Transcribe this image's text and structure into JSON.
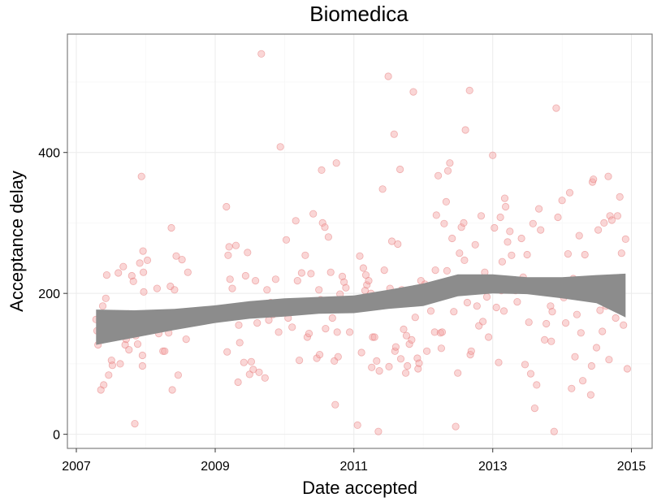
{
  "chart_data": {
    "type": "scatter",
    "title": "Biomedica",
    "xlabel": "Date accepted",
    "ylabel": "Acceptance delay",
    "xlim": [
      "2006-11-15",
      "2015-04-20"
    ],
    "ylim": [
      -20,
      568
    ],
    "x_ticks": [
      "2007",
      "2009",
      "2011",
      "2013",
      "2015"
    ],
    "x_tick_values": [
      "2007-01-01",
      "2009-01-01",
      "2011-01-01",
      "2013-01-01",
      "2015-01-01"
    ],
    "y_ticks": [
      "0",
      "200",
      "400"
    ],
    "y_tick_values": [
      0,
      200,
      400
    ],
    "grid": true,
    "colors": {
      "point_fill": "#f4a3a3",
      "point_stroke": "#e06666",
      "smooth_band": "#8c8c8c",
      "grid_major": "#ebebeb",
      "grid_minor": "#f5f5f5",
      "panel_border": "#7f7f7f"
    },
    "points": [
      [
        "2007-04-15",
        163
      ],
      [
        "2007-04-20",
        147
      ],
      [
        "2007-04-25",
        127
      ],
      [
        "2007-05-10",
        63
      ],
      [
        "2007-05-20",
        182
      ],
      [
        "2007-05-25",
        70
      ],
      [
        "2007-06-05",
        193
      ],
      [
        "2007-06-10",
        226
      ],
      [
        "2007-06-20",
        84
      ],
      [
        "2007-07-05",
        105
      ],
      [
        "2007-07-10",
        98
      ],
      [
        "2007-07-20",
        140
      ],
      [
        "2007-08-10",
        229
      ],
      [
        "2007-08-20",
        100
      ],
      [
        "2007-09-05",
        238
      ],
      [
        "2007-09-15",
        127
      ],
      [
        "2007-09-20",
        135
      ],
      [
        "2007-10-01",
        171
      ],
      [
        "2007-10-05",
        120
      ],
      [
        "2007-10-10",
        165
      ],
      [
        "2007-10-20",
        225
      ],
      [
        "2007-10-28",
        217
      ],
      [
        "2007-11-05",
        15
      ],
      [
        "2007-11-10",
        140
      ],
      [
        "2007-11-20",
        128
      ],
      [
        "2007-12-01",
        243
      ],
      [
        "2007-12-05",
        145
      ],
      [
        "2007-12-10",
        366
      ],
      [
        "2007-12-15",
        97
      ],
      [
        "2007-12-15",
        112
      ],
      [
        "2007-12-18",
        260
      ],
      [
        "2007-12-20",
        230
      ],
      [
        "2007-12-22",
        202
      ],
      [
        "2008-01-10",
        247
      ],
      [
        "2008-01-20",
        160
      ],
      [
        "2008-03-01",
        207
      ],
      [
        "2008-03-10",
        143
      ],
      [
        "2008-04-01",
        118
      ],
      [
        "2008-04-10",
        118
      ],
      [
        "2008-05-01",
        144
      ],
      [
        "2008-05-10",
        210
      ],
      [
        "2008-05-15",
        293
      ],
      [
        "2008-05-20",
        63
      ],
      [
        "2008-06-01",
        205
      ],
      [
        "2008-06-10",
        253
      ],
      [
        "2008-06-20",
        84
      ],
      [
        "2008-07-10",
        248
      ],
      [
        "2008-08-01",
        135
      ],
      [
        "2008-08-10",
        230
      ],
      [
        "2008-08-20",
        158
      ],
      [
        "2009-03-01",
        323
      ],
      [
        "2009-03-05",
        117
      ],
      [
        "2009-03-10",
        254
      ],
      [
        "2009-03-15",
        266
      ],
      [
        "2009-03-20",
        220
      ],
      [
        "2009-04-01",
        207
      ],
      [
        "2009-04-10",
        170
      ],
      [
        "2009-04-20",
        268
      ],
      [
        "2009-05-01",
        74
      ],
      [
        "2009-05-05",
        155
      ],
      [
        "2009-05-10",
        130
      ],
      [
        "2009-06-01",
        102
      ],
      [
        "2009-06-10",
        225
      ],
      [
        "2009-06-20",
        258
      ],
      [
        "2009-07-01",
        85
      ],
      [
        "2009-07-10",
        103
      ],
      [
        "2009-07-20",
        92
      ],
      [
        "2009-08-01",
        218
      ],
      [
        "2009-08-10",
        158
      ],
      [
        "2009-08-20",
        88
      ],
      [
        "2009-09-01",
        540
      ],
      [
        "2009-09-05",
        185
      ],
      [
        "2009-09-10",
        180
      ],
      [
        "2009-09-20",
        80
      ],
      [
        "2009-10-01",
        205
      ],
      [
        "2009-10-10",
        162
      ],
      [
        "2009-10-20",
        187
      ],
      [
        "2009-11-01",
        170
      ],
      [
        "2009-11-15",
        220
      ],
      [
        "2009-12-01",
        145
      ],
      [
        "2009-12-10",
        408
      ],
      [
        "2009-12-20",
        186
      ],
      [
        "2010-01-10",
        276
      ],
      [
        "2010-01-20",
        165
      ],
      [
        "2010-02-01",
        180
      ],
      [
        "2010-02-10",
        152
      ],
      [
        "2010-03-01",
        303
      ],
      [
        "2010-03-10",
        218
      ],
      [
        "2010-03-20",
        105
      ],
      [
        "2010-04-01",
        229
      ],
      [
        "2010-04-10",
        186
      ],
      [
        "2010-04-20",
        254
      ],
      [
        "2010-05-01",
        138
      ],
      [
        "2010-05-10",
        143
      ],
      [
        "2010-05-20",
        228
      ],
      [
        "2010-06-01",
        313
      ],
      [
        "2010-06-10",
        178
      ],
      [
        "2010-06-20",
        108
      ],
      [
        "2010-07-01",
        205
      ],
      [
        "2010-07-05",
        113
      ],
      [
        "2010-07-10",
        191
      ],
      [
        "2010-07-15",
        375
      ],
      [
        "2010-07-20",
        300
      ],
      [
        "2010-08-01",
        294
      ],
      [
        "2010-08-05",
        150
      ],
      [
        "2010-08-10",
        184
      ],
      [
        "2010-08-20",
        280
      ],
      [
        "2010-09-01",
        230
      ],
      [
        "2010-09-10",
        165
      ],
      [
        "2010-09-20",
        104
      ],
      [
        "2010-09-25",
        42
      ],
      [
        "2010-10-01",
        385
      ],
      [
        "2010-10-05",
        145
      ],
      [
        "2010-10-10",
        110
      ],
      [
        "2010-10-20",
        199
      ],
      [
        "2010-11-01",
        224
      ],
      [
        "2010-11-10",
        216
      ],
      [
        "2010-11-20",
        208
      ],
      [
        "2010-12-10",
        145
      ],
      [
        "2011-01-20",
        13
      ],
      [
        "2011-02-01",
        253
      ],
      [
        "2011-02-10",
        116
      ],
      [
        "2011-02-20",
        236
      ],
      [
        "2011-03-01",
        204
      ],
      [
        "2011-03-05",
        226
      ],
      [
        "2011-03-10",
        212
      ],
      [
        "2011-03-20",
        218
      ],
      [
        "2011-04-01",
        200
      ],
      [
        "2011-04-05",
        95
      ],
      [
        "2011-04-10",
        138
      ],
      [
        "2011-04-20",
        138
      ],
      [
        "2011-05-01",
        104
      ],
      [
        "2011-05-10",
        4
      ],
      [
        "2011-05-15",
        90
      ],
      [
        "2011-06-01",
        348
      ],
      [
        "2011-06-10",
        233
      ],
      [
        "2011-06-20",
        187
      ],
      [
        "2011-07-01",
        508
      ],
      [
        "2011-07-05",
        96
      ],
      [
        "2011-07-10",
        207
      ],
      [
        "2011-07-20",
        274
      ],
      [
        "2011-08-01",
        426
      ],
      [
        "2011-08-05",
        118
      ],
      [
        "2011-08-10",
        124
      ],
      [
        "2011-08-20",
        270
      ],
      [
        "2011-09-01",
        376
      ],
      [
        "2011-09-05",
        107
      ],
      [
        "2011-09-10",
        205
      ],
      [
        "2011-09-20",
        149
      ],
      [
        "2011-10-01",
        87
      ],
      [
        "2011-10-05",
        140
      ],
      [
        "2011-10-10",
        97
      ],
      [
        "2011-10-20",
        128
      ],
      [
        "2011-11-01",
        134
      ],
      [
        "2011-11-05",
        196
      ],
      [
        "2011-11-10",
        486
      ],
      [
        "2011-11-20",
        166
      ],
      [
        "2011-12-01",
        108
      ],
      [
        "2011-12-05",
        93
      ],
      [
        "2011-12-10",
        101
      ],
      [
        "2011-12-20",
        218
      ],
      [
        "2012-01-01",
        199
      ],
      [
        "2012-01-10",
        213
      ],
      [
        "2012-01-20",
        118
      ],
      [
        "2012-02-01",
        194
      ],
      [
        "2012-02-10",
        175
      ],
      [
        "2012-03-01",
        145
      ],
      [
        "2012-03-05",
        233
      ],
      [
        "2012-03-10",
        311
      ],
      [
        "2012-03-20",
        367
      ],
      [
        "2012-04-01",
        144
      ],
      [
        "2012-04-05",
        122
      ],
      [
        "2012-04-10",
        145
      ],
      [
        "2012-04-20",
        299
      ],
      [
        "2012-05-01",
        330
      ],
      [
        "2012-05-05",
        232
      ],
      [
        "2012-05-10",
        374
      ],
      [
        "2012-05-20",
        385
      ],
      [
        "2012-06-01",
        278
      ],
      [
        "2012-06-10",
        174
      ],
      [
        "2012-06-20",
        11
      ],
      [
        "2012-07-01",
        87
      ],
      [
        "2012-07-10",
        257
      ],
      [
        "2012-07-20",
        294
      ],
      [
        "2012-08-01",
        300
      ],
      [
        "2012-08-05",
        247
      ],
      [
        "2012-08-10",
        432
      ],
      [
        "2012-08-20",
        187
      ],
      [
        "2012-09-01",
        488
      ],
      [
        "2012-09-05",
        113
      ],
      [
        "2012-09-10",
        118
      ],
      [
        "2012-09-20",
        213
      ],
      [
        "2012-10-01",
        269
      ],
      [
        "2012-10-10",
        182
      ],
      [
        "2012-10-20",
        154
      ],
      [
        "2012-11-01",
        310
      ],
      [
        "2012-11-10",
        160
      ],
      [
        "2012-11-20",
        230
      ],
      [
        "2012-12-01",
        195
      ],
      [
        "2012-12-10",
        138
      ],
      [
        "2013-01-01",
        396
      ],
      [
        "2013-01-10",
        293
      ],
      [
        "2013-01-20",
        180
      ],
      [
        "2013-02-01",
        102
      ],
      [
        "2013-02-10",
        308
      ],
      [
        "2013-02-15",
        204
      ],
      [
        "2013-02-20",
        245
      ],
      [
        "2013-03-01",
        175
      ],
      [
        "2013-03-05",
        335
      ],
      [
        "2013-03-10",
        323
      ],
      [
        "2013-03-20",
        273
      ],
      [
        "2013-04-01",
        288
      ],
      [
        "2013-04-10",
        254
      ],
      [
        "2013-04-20",
        212
      ],
      [
        "2013-05-01",
        204
      ],
      [
        "2013-05-10",
        188
      ],
      [
        "2013-06-01",
        278
      ],
      [
        "2013-06-10",
        223
      ],
      [
        "2013-06-20",
        99
      ],
      [
        "2013-07-01",
        255
      ],
      [
        "2013-07-10",
        159
      ],
      [
        "2013-07-20",
        86
      ],
      [
        "2013-08-01",
        299
      ],
      [
        "2013-08-10",
        37
      ],
      [
        "2013-08-20",
        70
      ],
      [
        "2013-09-01",
        320
      ],
      [
        "2013-09-10",
        290
      ],
      [
        "2013-09-20",
        202
      ],
      [
        "2013-10-01",
        134
      ],
      [
        "2013-10-10",
        157
      ],
      [
        "2013-10-20",
        217
      ],
      [
        "2013-11-01",
        182
      ],
      [
        "2013-11-05",
        132
      ],
      [
        "2013-11-10",
        174
      ],
      [
        "2013-11-20",
        4
      ],
      [
        "2013-12-01",
        463
      ],
      [
        "2013-12-10",
        308
      ],
      [
        "2013-12-20",
        209
      ],
      [
        "2014-01-01",
        332
      ],
      [
        "2014-01-10",
        194
      ],
      [
        "2014-01-20",
        158
      ],
      [
        "2014-02-01",
        256
      ],
      [
        "2014-02-10",
        343
      ],
      [
        "2014-02-20",
        65
      ],
      [
        "2014-03-01",
        221
      ],
      [
        "2014-03-10",
        110
      ],
      [
        "2014-03-20",
        170
      ],
      [
        "2014-04-01",
        282
      ],
      [
        "2014-04-10",
        144
      ],
      [
        "2014-04-20",
        76
      ],
      [
        "2014-05-01",
        255
      ],
      [
        "2014-05-10",
        216
      ],
      [
        "2014-05-20",
        210
      ],
      [
        "2014-06-01",
        56
      ],
      [
        "2014-06-05",
        97
      ],
      [
        "2014-06-10",
        358
      ],
      [
        "2014-06-15",
        362
      ],
      [
        "2014-06-20",
        196
      ],
      [
        "2014-07-01",
        123
      ],
      [
        "2014-07-10",
        290
      ],
      [
        "2014-07-20",
        176
      ],
      [
        "2014-08-01",
        146
      ],
      [
        "2014-08-10",
        300
      ],
      [
        "2014-08-20",
        182
      ],
      [
        "2014-09-01",
        366
      ],
      [
        "2014-09-05",
        106
      ],
      [
        "2014-09-10",
        310
      ],
      [
        "2014-09-20",
        304
      ],
      [
        "2014-10-01",
        188
      ],
      [
        "2014-10-10",
        165
      ],
      [
        "2014-10-20",
        310
      ],
      [
        "2014-11-01",
        337
      ],
      [
        "2014-11-10",
        257
      ],
      [
        "2014-11-20",
        155
      ],
      [
        "2014-12-01",
        277
      ],
      [
        "2014-12-10",
        93
      ]
    ],
    "smooth": [
      {
        "x": "2007-04-15",
        "lower": 127,
        "upper": 177
      },
      {
        "x": "2007-11-01",
        "lower": 137,
        "upper": 176
      },
      {
        "x": "2008-06-01",
        "lower": 148,
        "upper": 178
      },
      {
        "x": "2009-01-01",
        "lower": 158,
        "upper": 183
      },
      {
        "x": "2009-07-01",
        "lower": 164,
        "upper": 189
      },
      {
        "x": "2010-01-01",
        "lower": 167,
        "upper": 193
      },
      {
        "x": "2010-07-01",
        "lower": 171,
        "upper": 195
      },
      {
        "x": "2011-01-01",
        "lower": 172,
        "upper": 197
      },
      {
        "x": "2011-07-01",
        "lower": 178,
        "upper": 205
      },
      {
        "x": "2012-01-01",
        "lower": 182,
        "upper": 214
      },
      {
        "x": "2012-07-01",
        "lower": 196,
        "upper": 227
      },
      {
        "x": "2013-01-01",
        "lower": 200,
        "upper": 227
      },
      {
        "x": "2013-07-01",
        "lower": 199,
        "upper": 223
      },
      {
        "x": "2014-01-01",
        "lower": 193,
        "upper": 223
      },
      {
        "x": "2014-07-01",
        "lower": 186,
        "upper": 226
      },
      {
        "x": "2014-12-01",
        "lower": 166,
        "upper": 228
      }
    ]
  }
}
